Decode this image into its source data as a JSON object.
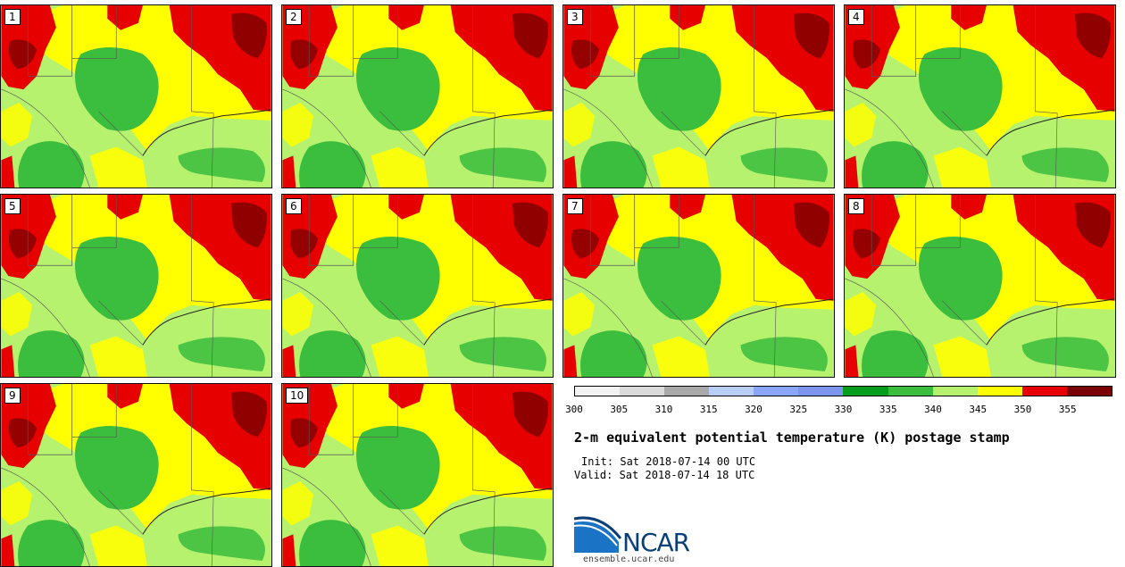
{
  "members": [
    "1",
    "2",
    "3",
    "4",
    "5",
    "6",
    "7",
    "8",
    "9",
    "10"
  ],
  "colorbar": {
    "ticks": [
      "300",
      "305",
      "310",
      "315",
      "320",
      "325",
      "330",
      "335",
      "340",
      "345",
      "350",
      "355"
    ],
    "colors": [
      "#f2f2f2",
      "#dadada",
      "#a9a9a9",
      "#b8cef7",
      "#8aa6f8",
      "#7b95ee",
      "#059e1c",
      "#3bbd3d",
      "#b7f26f",
      "#ffff00",
      "#e60000",
      "#7a0000"
    ]
  },
  "title": "2-m equivalent potential temperature (K) postage stamp",
  "init_text": "Init: Sat 2018-07-14 00 UTC",
  "valid_text": "Valid: Sat 2018-07-14 18 UTC",
  "logo_text": "NCAR",
  "site": "ensemble.ucar.edu"
}
